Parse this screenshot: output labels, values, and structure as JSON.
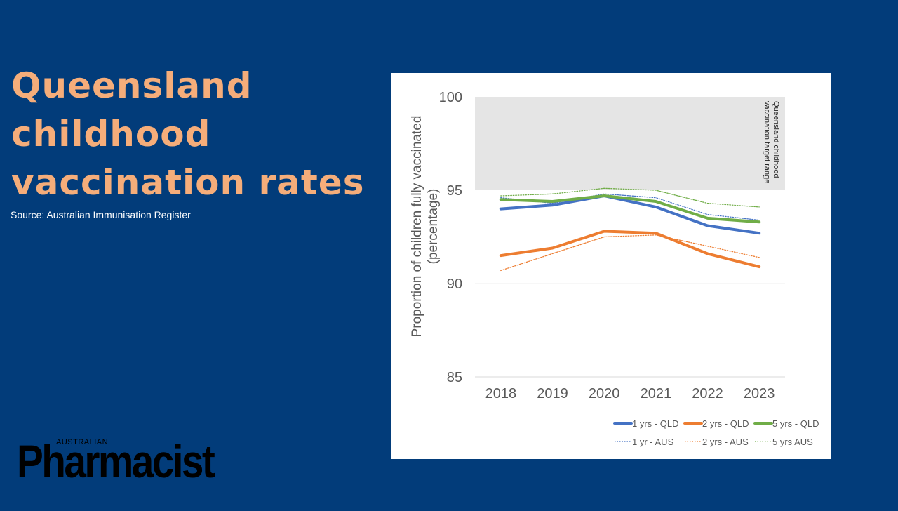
{
  "page": {
    "title_lines": [
      "Queensland",
      "childhood",
      "vaccination rates"
    ],
    "source": "Source: Australian Immunisation Register",
    "logo_small": "AUSTRALIAN",
    "logo_big": "Pharmacist"
  },
  "colors": {
    "background": "#023c7a",
    "title": "#f5ad7a",
    "blue": "#4472c4",
    "orange": "#ed7d31",
    "green": "#70ad47",
    "band": "#e5e5e5"
  },
  "chart_data": {
    "type": "line",
    "categories": [
      "2018",
      "2019",
      "2020",
      "2021",
      "2022",
      "2023"
    ],
    "ylabel_lines": [
      "Proportion of children fully vaccinated",
      "(percentage)"
    ],
    "ylim": [
      85,
      100
    ],
    "yticks": [
      "85",
      "90",
      "95",
      "100"
    ],
    "grid": false,
    "legend_position": "bottom",
    "band": {
      "from": 95,
      "to": 100,
      "label_lines": [
        "Queensland childhood",
        "vaccination target range"
      ]
    },
    "series": [
      {
        "name": "1 yrs - QLD",
        "style": "solid",
        "color": "#4472c4",
        "values": [
          94.0,
          94.2,
          94.7,
          94.1,
          93.1,
          92.7
        ]
      },
      {
        "name": "2 yrs - QLD",
        "style": "solid",
        "color": "#ed7d31",
        "values": [
          91.5,
          91.9,
          92.8,
          92.7,
          91.6,
          90.9
        ]
      },
      {
        "name": "5 yrs - QLD",
        "style": "solid",
        "color": "#70ad47",
        "values": [
          94.5,
          94.4,
          94.7,
          94.4,
          93.5,
          93.3
        ]
      },
      {
        "name": "1 yr - AUS",
        "style": "dotted",
        "color": "#4472c4",
        "values": [
          94.6,
          94.3,
          94.8,
          94.6,
          93.7,
          93.4
        ]
      },
      {
        "name": "2 yrs - AUS",
        "style": "dotted",
        "color": "#ed7d31",
        "values": [
          90.7,
          91.6,
          92.5,
          92.6,
          92.0,
          91.4
        ]
      },
      {
        "name": "5 yrs AUS",
        "style": "dotted",
        "color": "#70ad47",
        "values": [
          94.7,
          94.8,
          95.1,
          95.0,
          94.3,
          94.1
        ]
      }
    ]
  }
}
